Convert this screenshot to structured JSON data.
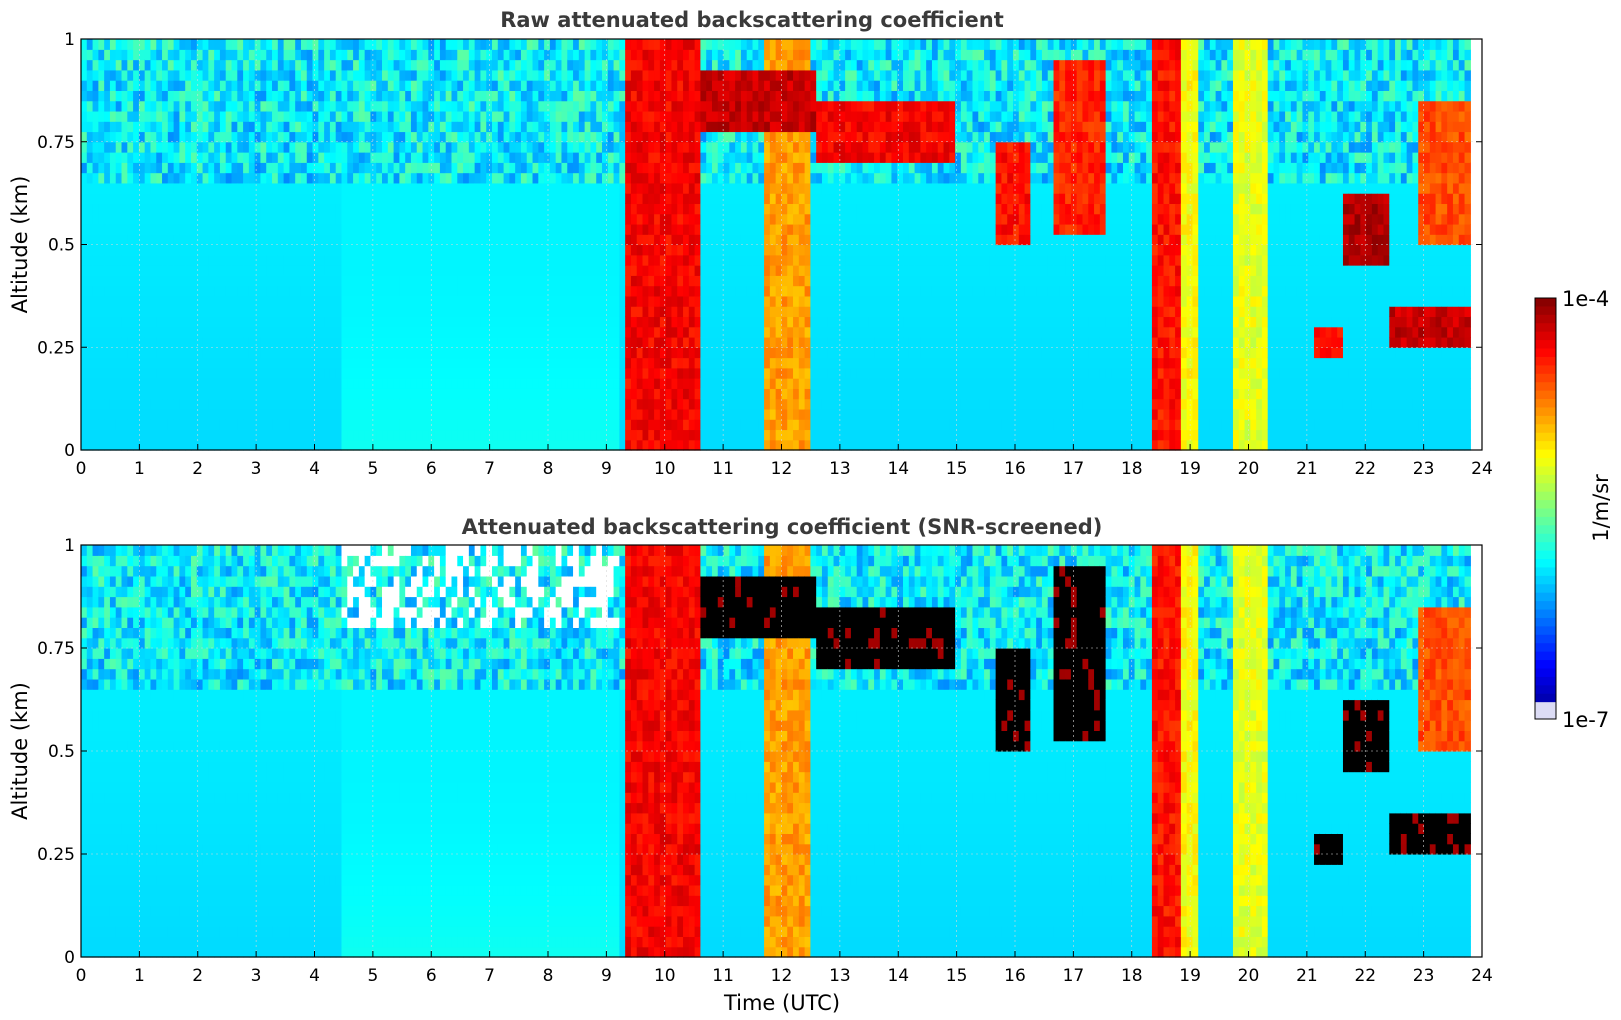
{
  "chart_data": [
    {
      "type": "heatmap",
      "title": "Raw attenuated backscattering coefficient",
      "xlabel": "",
      "ylabel": "Altitude (km)",
      "xlim": [
        0,
        24
      ],
      "ylim": [
        0,
        1
      ],
      "x_ticks": [
        "0",
        "1",
        "2",
        "3",
        "4",
        "5",
        "6",
        "7",
        "8",
        "9",
        "10",
        "11",
        "12",
        "13",
        "14",
        "15",
        "16",
        "17",
        "18",
        "19",
        "20",
        "21",
        "22",
        "23",
        "24"
      ],
      "y_ticks": [
        "0",
        "0.25",
        "0.5",
        "0.75",
        "1"
      ],
      "grid": true,
      "data_end_hour": 23.8,
      "screened": false,
      "features": [
        {
          "start": 9.3,
          "end": 10.6,
          "top": 1.0,
          "level": 0.88
        },
        {
          "start": 10.6,
          "end": 12.6,
          "base": 0.78,
          "top": 0.92,
          "level": 0.93
        },
        {
          "start": 11.7,
          "end": 12.5,
          "top": 1.0,
          "level": 0.72
        },
        {
          "start": 12.6,
          "end": 15.0,
          "base": 0.7,
          "top": 0.85,
          "level": 0.88
        },
        {
          "start": 15.7,
          "end": 16.3,
          "base": 0.5,
          "top": 0.75,
          "level": 0.86
        },
        {
          "start": 16.7,
          "end": 17.6,
          "base": 0.52,
          "top": 0.95,
          "level": 0.84
        },
        {
          "start": 18.3,
          "end": 18.8,
          "top": 1.0,
          "level": 0.86
        },
        {
          "start": 18.8,
          "end": 19.1,
          "top": 1.0,
          "level": 0.62
        },
        {
          "start": 19.7,
          "end": 20.3,
          "top": 1.0,
          "level": 0.6
        },
        {
          "start": 21.1,
          "end": 21.6,
          "base": 0.22,
          "top": 0.3,
          "level": 0.86
        },
        {
          "start": 21.6,
          "end": 22.4,
          "base": 0.45,
          "top": 0.62,
          "level": 0.95
        },
        {
          "start": 22.4,
          "end": 23.8,
          "base": 0.26,
          "top": 0.35,
          "level": 0.93
        },
        {
          "start": 22.9,
          "end": 23.8,
          "base": 0.5,
          "top": 0.85,
          "level": 0.8
        }
      ]
    },
    {
      "type": "heatmap",
      "title": "Attenuated backscattering coefficient (SNR-screened)",
      "xlabel": "Time (UTC)",
      "ylabel": "Altitude (km)",
      "xlim": [
        0,
        24
      ],
      "ylim": [
        0,
        1
      ],
      "x_ticks": [
        "0",
        "1",
        "2",
        "3",
        "4",
        "5",
        "6",
        "7",
        "8",
        "9",
        "10",
        "11",
        "12",
        "13",
        "14",
        "15",
        "16",
        "17",
        "18",
        "19",
        "20",
        "21",
        "22",
        "23",
        "24"
      ],
      "y_ticks": [
        "0",
        "0.25",
        "0.5",
        "0.75",
        "1"
      ],
      "grid": true,
      "data_end_hour": 23.8,
      "screened": true,
      "features": [
        {
          "start": 9.3,
          "end": 10.6,
          "top": 1.0,
          "level": 0.88
        },
        {
          "start": 10.6,
          "end": 12.6,
          "base": 0.78,
          "top": 0.92,
          "level": 1.0
        },
        {
          "start": 11.7,
          "end": 12.5,
          "top": 1.0,
          "level": 0.72
        },
        {
          "start": 12.6,
          "end": 15.0,
          "base": 0.7,
          "top": 0.85,
          "level": 1.0
        },
        {
          "start": 15.7,
          "end": 16.3,
          "base": 0.5,
          "top": 0.75,
          "level": 1.0
        },
        {
          "start": 16.7,
          "end": 17.6,
          "base": 0.52,
          "top": 0.95,
          "level": 1.0
        },
        {
          "start": 18.3,
          "end": 18.8,
          "top": 1.0,
          "level": 0.86
        },
        {
          "start": 18.8,
          "end": 19.1,
          "top": 1.0,
          "level": 0.62
        },
        {
          "start": 19.7,
          "end": 20.3,
          "top": 1.0,
          "level": 0.6
        },
        {
          "start": 21.1,
          "end": 21.6,
          "base": 0.22,
          "top": 0.3,
          "level": 1.0
        },
        {
          "start": 21.6,
          "end": 22.4,
          "base": 0.45,
          "top": 0.62,
          "level": 1.0
        },
        {
          "start": 22.4,
          "end": 23.8,
          "base": 0.26,
          "top": 0.35,
          "level": 1.0
        },
        {
          "start": 22.9,
          "end": 23.8,
          "base": 0.5,
          "top": 0.85,
          "level": 0.8
        }
      ]
    }
  ],
  "colorbar": {
    "max_label": "1e-4",
    "min_label": "1e-7",
    "unit_label": "1/m/sr",
    "colormap": "jet",
    "steps": 50
  }
}
